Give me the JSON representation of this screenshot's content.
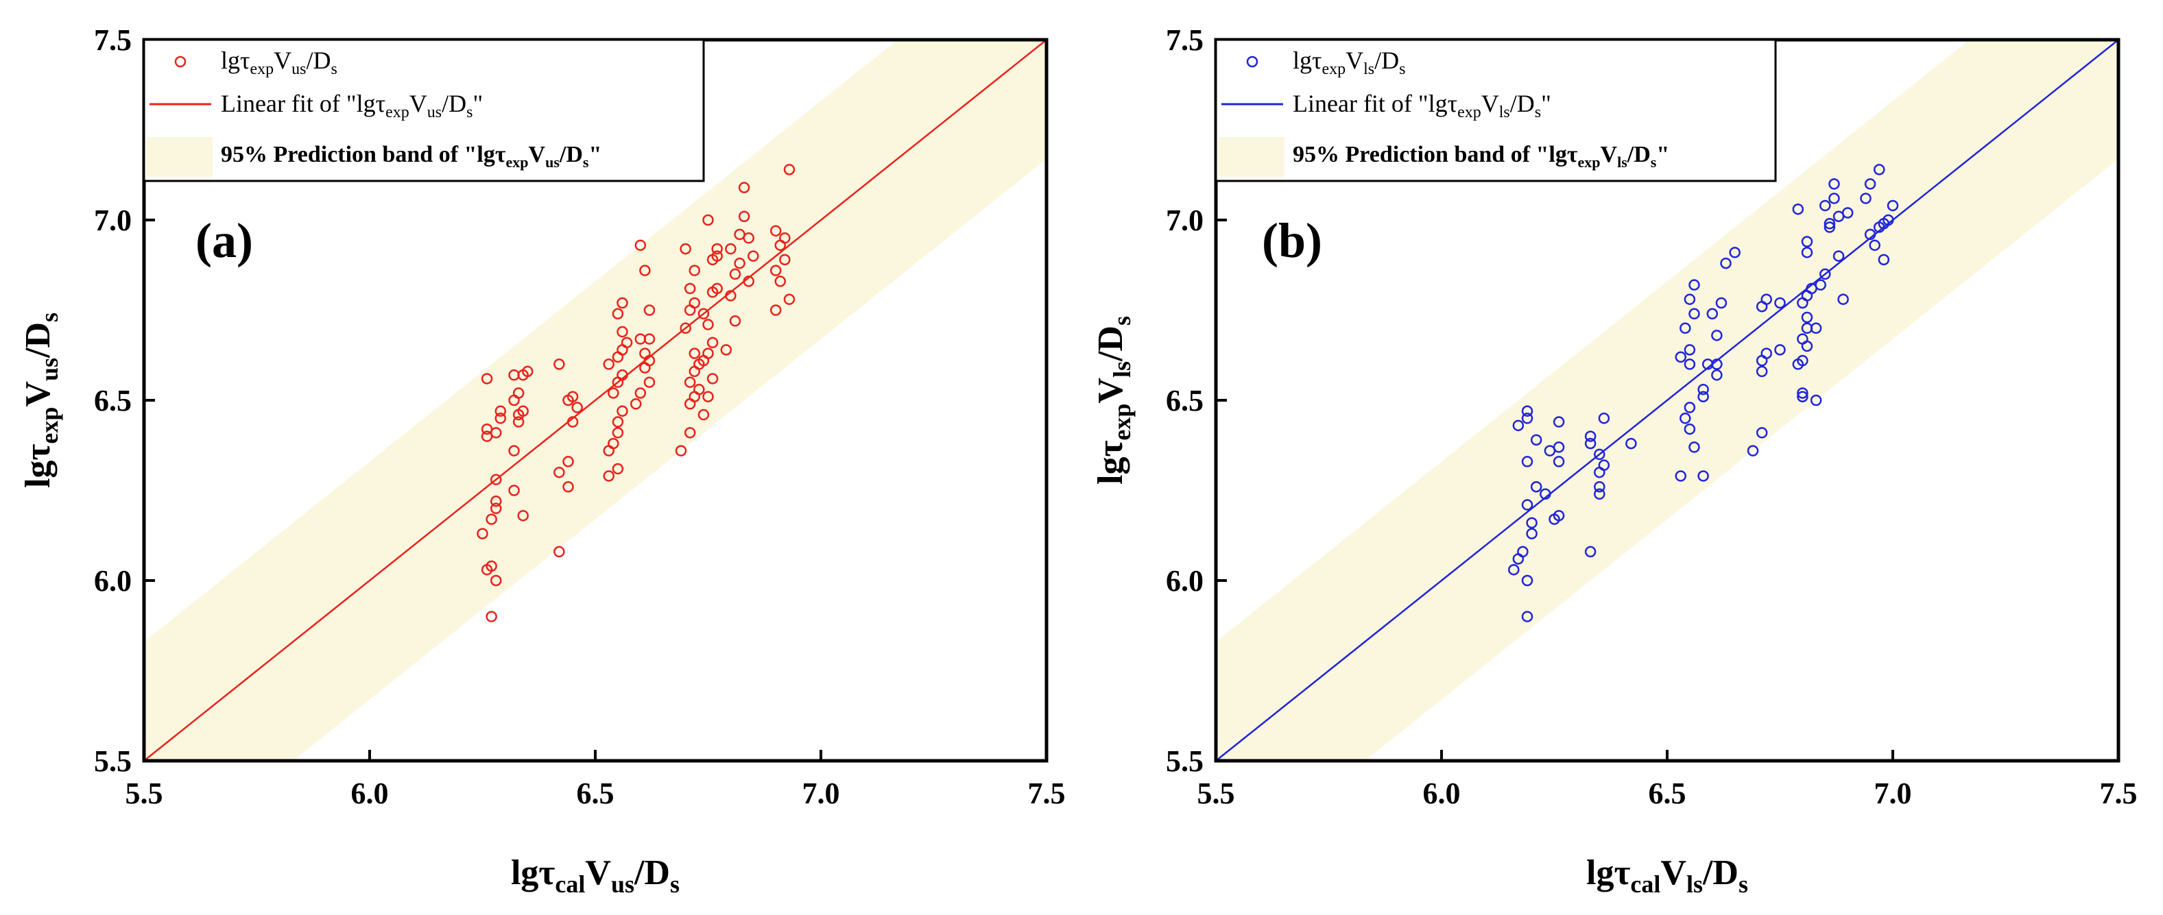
{
  "chart_data": [
    {
      "type": "scatter",
      "panel_label": "(a)",
      "xlim": [
        5.5,
        7.5
      ],
      "ylim": [
        5.5,
        7.5
      ],
      "xticks": [
        "5.5",
        "6.0",
        "6.5",
        "7.0",
        "7.5"
      ],
      "yticks": [
        "5.5",
        "6.0",
        "6.5",
        "7.0",
        "7.5"
      ],
      "xlabel": {
        "base": "lgτ",
        "sub1": "cal",
        "mid": "V",
        "sub2": "us",
        "tail": "/D",
        "sub3": "s"
      },
      "ylabel": {
        "base": "lgτ",
        "sub1": "exp",
        "mid": "V",
        "sub2": "us",
        "tail": "/D",
        "sub3": "s"
      },
      "color": "#e8221b",
      "band_color": "#fbf7df",
      "band_halfwidth": 0.33,
      "fit": {
        "slope": 1.0,
        "intercept": 0.0
      },
      "legend": {
        "position": "top-left",
        "scatter": {
          "base": "lgτ",
          "sub1": "exp",
          "mid": "V",
          "sub2": "us",
          "tail": "/D",
          "sub3": "s"
        },
        "fit": {
          "pre": "Linear fit of \"lgτ",
          "sub1": "exp",
          "mid": "V",
          "sub2": "us",
          "tail": "/D",
          "sub3": "s",
          "post": "\""
        },
        "band": {
          "pre": "95% Prediction band of \"lgτ",
          "sub1": "exp",
          "mid": "V",
          "sub2": "us",
          "tail": "/D",
          "sub3": "s",
          "post": "\""
        }
      },
      "points": [
        [
          6.25,
          6.13
        ],
        [
          6.26,
          6.03
        ],
        [
          6.27,
          6.04
        ],
        [
          6.28,
          6.0
        ],
        [
          6.27,
          5.9
        ],
        [
          6.27,
          6.17
        ],
        [
          6.28,
          6.2
        ],
        [
          6.28,
          6.22
        ],
        [
          6.28,
          6.28
        ],
        [
          6.26,
          6.4
        ],
        [
          6.26,
          6.42
        ],
        [
          6.28,
          6.41
        ],
        [
          6.29,
          6.45
        ],
        [
          6.29,
          6.47
        ],
        [
          6.26,
          6.56
        ],
        [
          6.32,
          6.25
        ],
        [
          6.32,
          6.36
        ],
        [
          6.33,
          6.44
        ],
        [
          6.33,
          6.46
        ],
        [
          6.34,
          6.47
        ],
        [
          6.32,
          6.5
        ],
        [
          6.33,
          6.52
        ],
        [
          6.34,
          6.57
        ],
        [
          6.35,
          6.58
        ],
        [
          6.32,
          6.57
        ],
        [
          6.34,
          6.18
        ],
        [
          6.42,
          6.08
        ],
        [
          6.42,
          6.3
        ],
        [
          6.44,
          6.33
        ],
        [
          6.44,
          6.26
        ],
        [
          6.45,
          6.44
        ],
        [
          6.46,
          6.48
        ],
        [
          6.44,
          6.5
        ],
        [
          6.45,
          6.51
        ],
        [
          6.42,
          6.6
        ],
        [
          6.53,
          6.29
        ],
        [
          6.53,
          6.36
        ],
        [
          6.55,
          6.31
        ],
        [
          6.54,
          6.38
        ],
        [
          6.55,
          6.41
        ],
        [
          6.55,
          6.44
        ],
        [
          6.56,
          6.47
        ],
        [
          6.54,
          6.52
        ],
        [
          6.55,
          6.55
        ],
        [
          6.56,
          6.57
        ],
        [
          6.53,
          6.6
        ],
        [
          6.55,
          6.62
        ],
        [
          6.56,
          6.64
        ],
        [
          6.57,
          6.66
        ],
        [
          6.56,
          6.69
        ],
        [
          6.55,
          6.74
        ],
        [
          6.56,
          6.77
        ],
        [
          6.59,
          6.49
        ],
        [
          6.6,
          6.52
        ],
        [
          6.62,
          6.55
        ],
        [
          6.61,
          6.59
        ],
        [
          6.62,
          6.61
        ],
        [
          6.61,
          6.63
        ],
        [
          6.6,
          6.67
        ],
        [
          6.62,
          6.67
        ],
        [
          6.62,
          6.75
        ],
        [
          6.61,
          6.86
        ],
        [
          6.6,
          6.93
        ],
        [
          6.69,
          6.36
        ],
        [
          6.71,
          6.41
        ],
        [
          6.71,
          6.49
        ],
        [
          6.72,
          6.51
        ],
        [
          6.73,
          6.53
        ],
        [
          6.71,
          6.55
        ],
        [
          6.72,
          6.58
        ],
        [
          6.73,
          6.6
        ],
        [
          6.72,
          6.63
        ],
        [
          6.7,
          6.7
        ],
        [
          6.71,
          6.75
        ],
        [
          6.72,
          6.77
        ],
        [
          6.71,
          6.81
        ],
        [
          6.72,
          6.86
        ],
        [
          6.7,
          6.92
        ],
        [
          6.74,
          6.46
        ],
        [
          6.75,
          6.51
        ],
        [
          6.76,
          6.56
        ],
        [
          6.75,
          6.63
        ],
        [
          6.76,
          6.66
        ],
        [
          6.75,
          6.71
        ],
        [
          6.74,
          6.74
        ],
        [
          6.76,
          6.8
        ],
        [
          6.77,
          6.81
        ],
        [
          6.76,
          6.89
        ],
        [
          6.77,
          6.92
        ],
        [
          6.75,
          7.0
        ],
        [
          6.79,
          6.64
        ],
        [
          6.8,
          6.79
        ],
        [
          6.81,
          6.85
        ],
        [
          6.82,
          6.88
        ],
        [
          6.8,
          6.92
        ],
        [
          6.82,
          6.96
        ],
        [
          6.83,
          7.01
        ],
        [
          6.83,
          7.09
        ],
        [
          6.84,
          6.83
        ],
        [
          6.85,
          6.9
        ],
        [
          6.9,
          6.75
        ],
        [
          6.91,
          6.83
        ],
        [
          6.9,
          6.86
        ],
        [
          6.91,
          6.93
        ],
        [
          6.92,
          6.95
        ],
        [
          6.9,
          6.97
        ],
        [
          6.93,
          6.78
        ],
        [
          6.92,
          6.89
        ],
        [
          6.93,
          7.14
        ],
        [
          6.77,
          6.9
        ],
        [
          6.74,
          6.61
        ],
        [
          6.81,
          6.72
        ],
        [
          6.84,
          6.95
        ]
      ]
    },
    {
      "type": "scatter",
      "panel_label": "(b)",
      "xlim": [
        5.5,
        7.5
      ],
      "ylim": [
        5.5,
        7.5
      ],
      "xticks": [
        "5.5",
        "6.0",
        "6.5",
        "7.0",
        "7.5"
      ],
      "yticks": [
        "5.5",
        "6.0",
        "6.5",
        "7.0",
        "7.5"
      ],
      "xlabel": {
        "base": "lgτ",
        "sub1": "cal",
        "mid": "V",
        "sub2": "ls",
        "tail": "/D",
        "sub3": "s"
      },
      "ylabel": {
        "base": "lgτ",
        "sub1": "exp",
        "mid": "V",
        "sub2": "ls",
        "tail": "/D",
        "sub3": "s"
      },
      "color": "#1f24d8",
      "band_color": "#fbf7df",
      "band_halfwidth": 0.33,
      "fit": {
        "slope": 1.0,
        "intercept": 0.0
      },
      "legend": {
        "position": "top-left",
        "scatter": {
          "base": "lgτ",
          "sub1": "exp",
          "mid": "V",
          "sub2": "ls",
          "tail": "/D",
          "sub3": "s"
        },
        "fit": {
          "pre": "Linear fit of \"lgτ",
          "sub1": "exp",
          "mid": "V",
          "sub2": "ls",
          "tail": "/D",
          "sub3": "s",
          "post": "\""
        },
        "band": {
          "pre": "95% Prediction band of \"lgτ",
          "sub1": "exp",
          "mid": "V",
          "sub2": "ls",
          "tail": "/D",
          "sub3": "s",
          "post": "\""
        }
      },
      "points": [
        [
          6.16,
          6.03
        ],
        [
          6.17,
          6.06
        ],
        [
          6.18,
          6.08
        ],
        [
          6.19,
          6.0
        ],
        [
          6.19,
          5.9
        ],
        [
          6.2,
          6.13
        ],
        [
          6.2,
          6.16
        ],
        [
          6.19,
          6.21
        ],
        [
          6.21,
          6.26
        ],
        [
          6.19,
          6.33
        ],
        [
          6.17,
          6.43
        ],
        [
          6.19,
          6.45
        ],
        [
          6.19,
          6.47
        ],
        [
          6.21,
          6.39
        ],
        [
          6.23,
          6.24
        ],
        [
          6.25,
          6.17
        ],
        [
          6.26,
          6.18
        ],
        [
          6.24,
          6.36
        ],
        [
          6.26,
          6.33
        ],
        [
          6.26,
          6.37
        ],
        [
          6.26,
          6.44
        ],
        [
          6.33,
          6.08
        ],
        [
          6.33,
          6.38
        ],
        [
          6.33,
          6.4
        ],
        [
          6.35,
          6.24
        ],
        [
          6.35,
          6.26
        ],
        [
          6.35,
          6.3
        ],
        [
          6.36,
          6.32
        ],
        [
          6.35,
          6.35
        ],
        [
          6.36,
          6.45
        ],
        [
          6.42,
          6.38
        ],
        [
          6.53,
          6.29
        ],
        [
          6.54,
          6.45
        ],
        [
          6.55,
          6.42
        ],
        [
          6.55,
          6.48
        ],
        [
          6.56,
          6.37
        ],
        [
          6.55,
          6.6
        ],
        [
          6.53,
          6.62
        ],
        [
          6.55,
          6.64
        ],
        [
          6.54,
          6.7
        ],
        [
          6.56,
          6.74
        ],
        [
          6.55,
          6.78
        ],
        [
          6.56,
          6.82
        ],
        [
          6.58,
          6.29
        ],
        [
          6.58,
          6.51
        ],
        [
          6.58,
          6.53
        ],
        [
          6.59,
          6.6
        ],
        [
          6.61,
          6.57
        ],
        [
          6.61,
          6.6
        ],
        [
          6.61,
          6.68
        ],
        [
          6.6,
          6.74
        ],
        [
          6.62,
          6.77
        ],
        [
          6.63,
          6.88
        ],
        [
          6.65,
          6.91
        ],
        [
          6.69,
          6.36
        ],
        [
          6.71,
          6.41
        ],
        [
          6.71,
          6.58
        ],
        [
          6.71,
          6.61
        ],
        [
          6.72,
          6.63
        ],
        [
          6.71,
          6.76
        ],
        [
          6.72,
          6.78
        ],
        [
          6.75,
          6.64
        ],
        [
          6.75,
          6.77
        ],
        [
          6.79,
          6.6
        ],
        [
          6.8,
          6.51
        ],
        [
          6.8,
          6.52
        ],
        [
          6.8,
          6.61
        ],
        [
          6.81,
          6.65
        ],
        [
          6.8,
          6.67
        ],
        [
          6.81,
          6.7
        ],
        [
          6.81,
          6.73
        ],
        [
          6.8,
          6.77
        ],
        [
          6.81,
          6.79
        ],
        [
          6.81,
          6.91
        ],
        [
          6.81,
          6.94
        ],
        [
          6.79,
          7.03
        ],
        [
          6.83,
          6.5
        ],
        [
          6.83,
          6.7
        ],
        [
          6.84,
          6.82
        ],
        [
          6.85,
          6.85
        ],
        [
          6.85,
          7.04
        ],
        [
          6.86,
          6.98
        ],
        [
          6.87,
          7.06
        ],
        [
          6.87,
          7.1
        ],
        [
          6.88,
          6.9
        ],
        [
          6.88,
          7.01
        ],
        [
          6.89,
          6.78
        ],
        [
          6.9,
          7.02
        ],
        [
          6.94,
          7.06
        ],
        [
          6.95,
          6.96
        ],
        [
          6.95,
          7.1
        ],
        [
          6.96,
          6.93
        ],
        [
          6.97,
          6.98
        ],
        [
          6.97,
          7.14
        ],
        [
          6.98,
          6.89
        ],
        [
          6.98,
          6.99
        ],
        [
          6.99,
          7.0
        ],
        [
          7.0,
          7.04
        ],
        [
          6.82,
          6.81
        ],
        [
          6.86,
          6.99
        ]
      ]
    }
  ]
}
